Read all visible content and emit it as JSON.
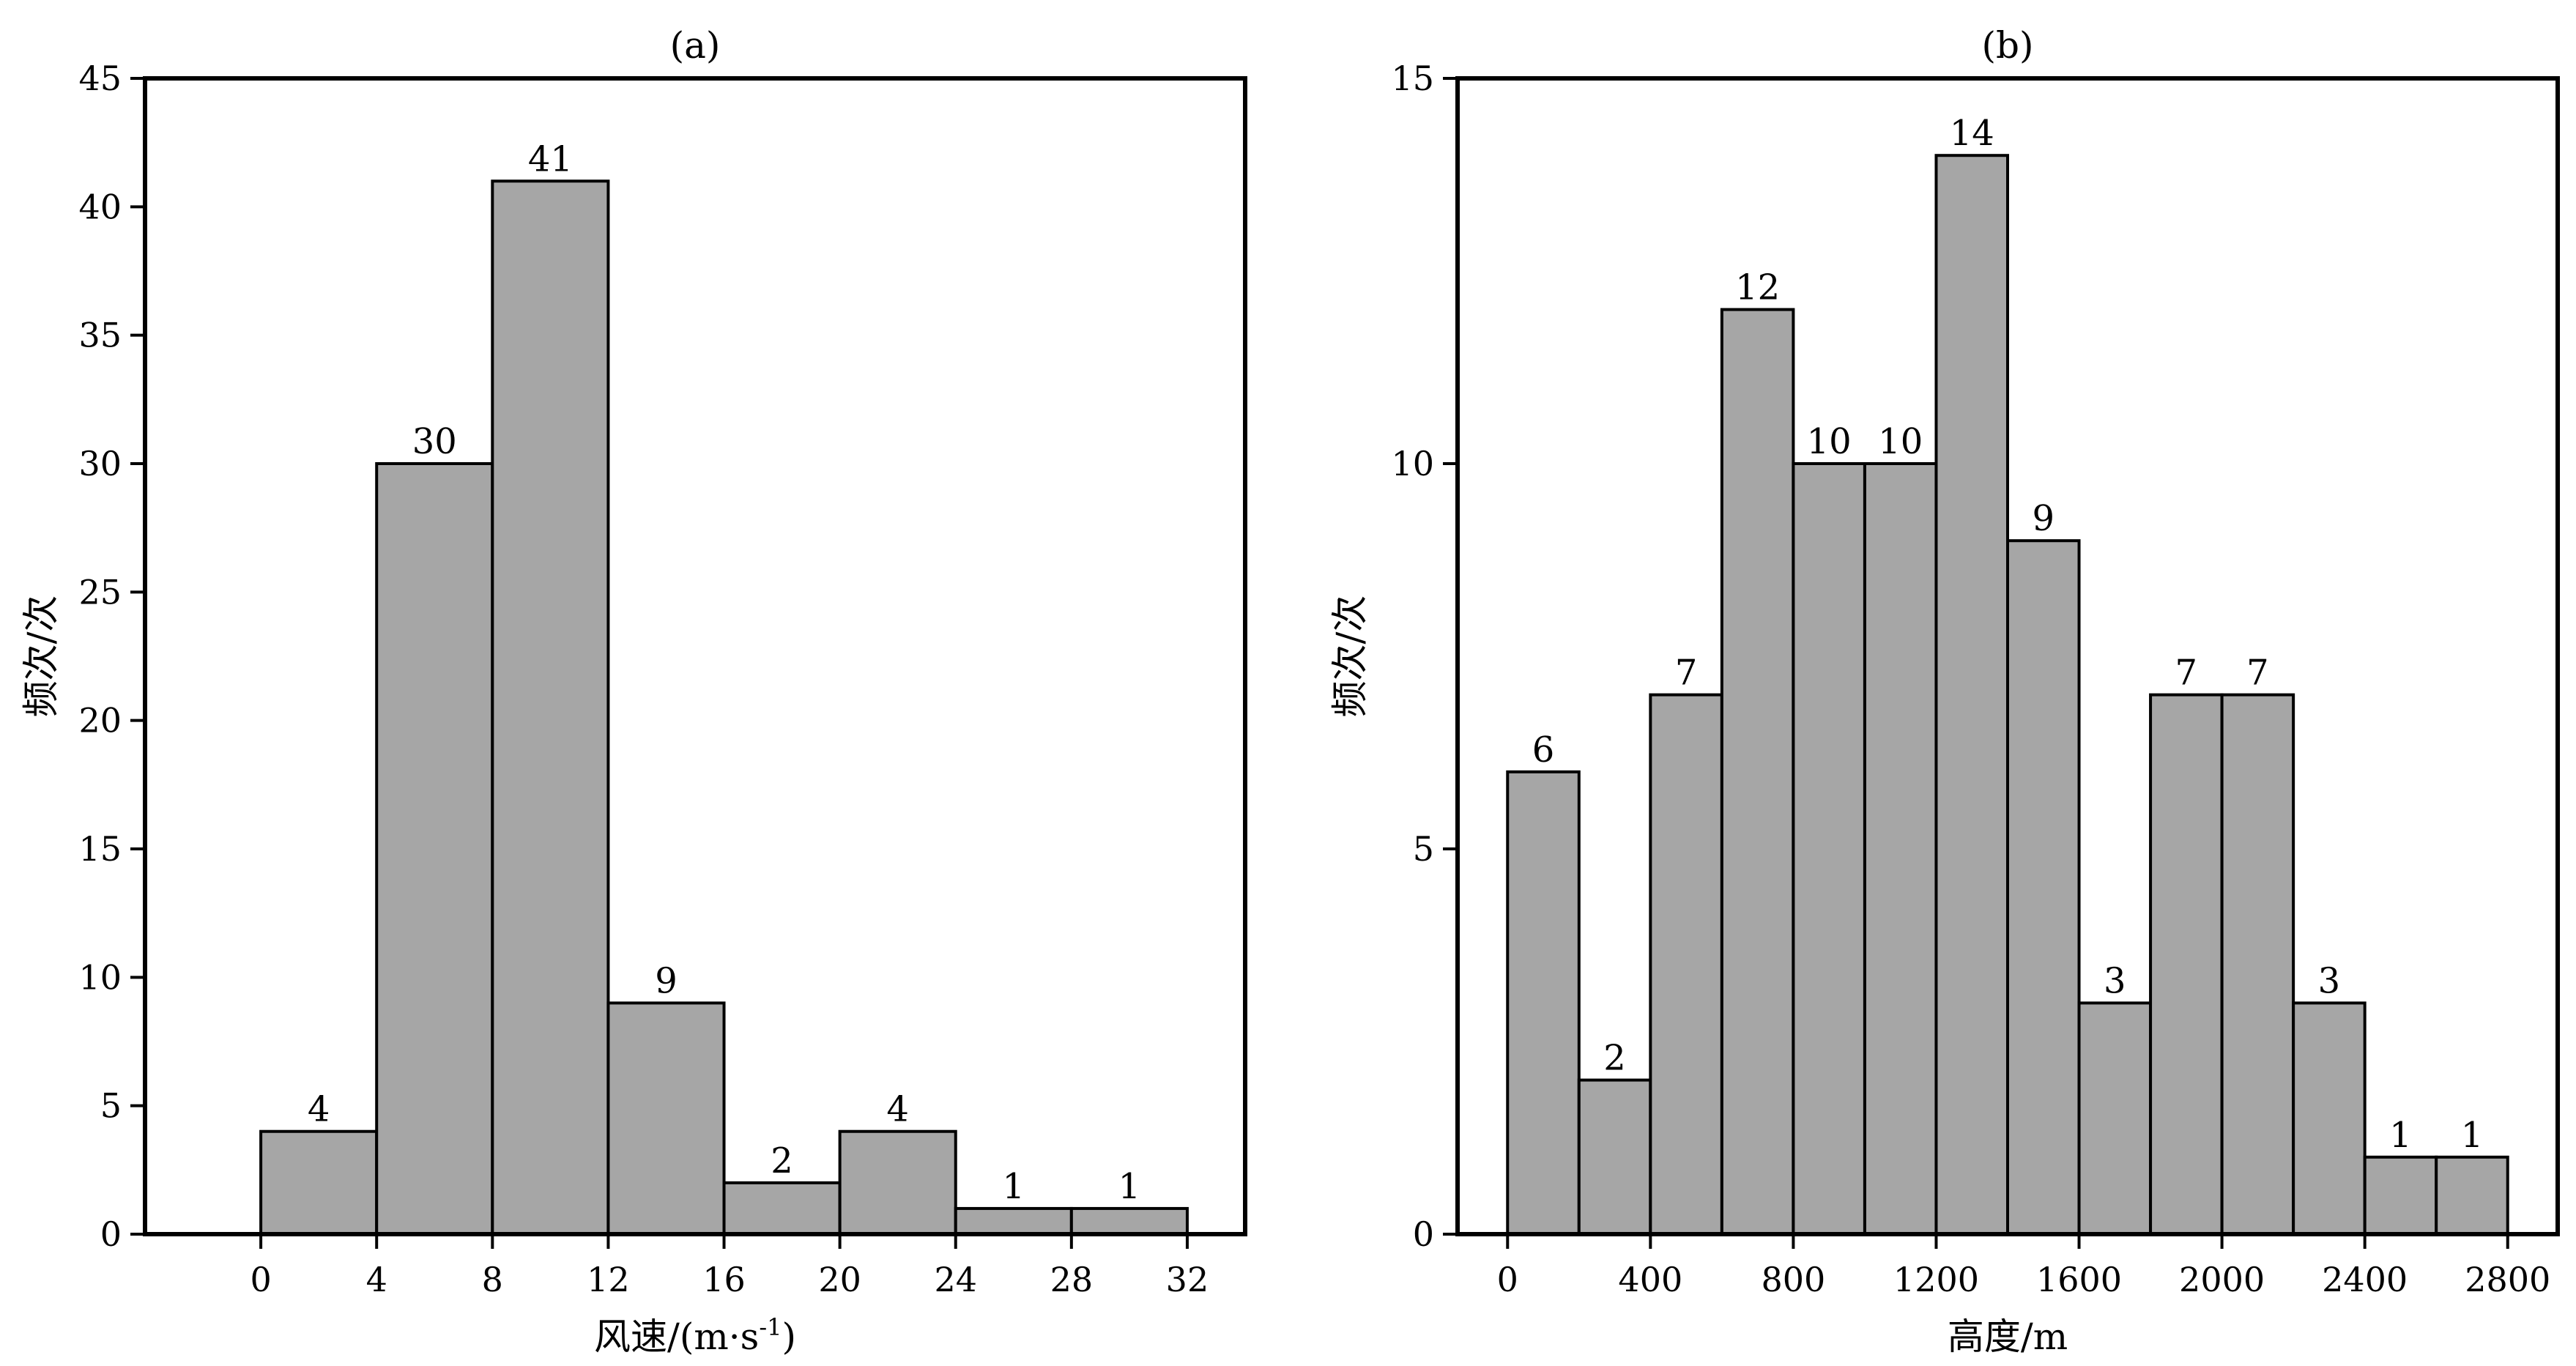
{
  "chart_data": [
    {
      "type": "bar",
      "panel_title": "(a)",
      "xlabel": "风速/(m·s",
      "xlabel_sup": "-1",
      "xlabel_close": ")",
      "ylabel": "频次/次",
      "bin_edges": [
        0,
        4,
        8,
        12,
        16,
        20,
        24,
        28,
        32
      ],
      "values": [
        4,
        30,
        41,
        9,
        2,
        4,
        1,
        1
      ],
      "value_labels": [
        "4",
        "30",
        "41",
        "9",
        "2",
        "4",
        "1",
        "1"
      ],
      "xlim": [
        -4,
        34
      ],
      "ylim": [
        0,
        45
      ],
      "xticks": [
        0,
        4,
        8,
        12,
        16,
        20,
        24,
        28,
        32
      ],
      "xtick_labels": [
        "0",
        "4",
        "8",
        "12",
        "16",
        "20",
        "24",
        "28",
        "32"
      ],
      "yticks": [
        0,
        5,
        10,
        15,
        20,
        25,
        30,
        35,
        40,
        45
      ],
      "ytick_labels": [
        "0",
        "5",
        "10",
        "15",
        "20",
        "25",
        "30",
        "35",
        "40",
        "45"
      ],
      "bar_color": "#a6a6a6",
      "grid": false
    },
    {
      "type": "bar",
      "panel_title": "(b)",
      "xlabel": "高度/m",
      "ylabel": "频次/次",
      "bin_edges": [
        0,
        200,
        400,
        600,
        800,
        1000,
        1200,
        1400,
        1600,
        1800,
        2000,
        2200,
        2400,
        2600,
        2800
      ],
      "values": [
        6,
        2,
        7,
        12,
        10,
        10,
        14,
        9,
        3,
        7,
        7,
        3,
        1,
        1
      ],
      "value_labels": [
        "6",
        "2",
        "7",
        "12",
        "10",
        "10",
        "14",
        "9",
        "3",
        "7",
        "7",
        "3",
        "1",
        "1"
      ],
      "xlim": [
        -140,
        2940
      ],
      "ylim": [
        0,
        15
      ],
      "xticks": [
        0,
        400,
        800,
        1200,
        1600,
        2000,
        2400,
        2800
      ],
      "xtick_labels": [
        "0",
        "400",
        "800",
        "1200",
        "1600",
        "2000",
        "2400",
        "2800"
      ],
      "yticks": [
        0,
        5,
        10,
        15
      ],
      "ytick_labels": [
        "0",
        "5",
        "10",
        "15"
      ],
      "bar_color": "#a6a6a6",
      "grid": false
    }
  ]
}
